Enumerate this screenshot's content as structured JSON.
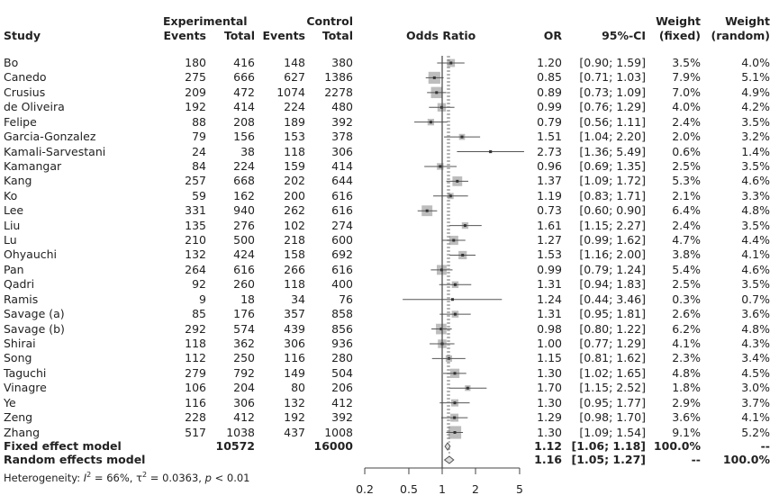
{
  "chart_data": {
    "type": "forest",
    "headers": {
      "study": "Study",
      "experimental": "Experimental",
      "control": "Control",
      "events": "Events",
      "total": "Total",
      "odds_ratio": "Odds Ratio",
      "or": "OR",
      "ci": "95%-CI",
      "weight": "Weight",
      "fixed": "(fixed)",
      "random": "(random)"
    },
    "studies": [
      {
        "name": "Bo",
        "e_events": "180",
        "e_total": "416",
        "c_events": "148",
        "c_total": "380",
        "or": 1.2,
        "lo": 0.9,
        "hi": 1.59,
        "or_text": "1.20",
        "ci_text": "[0.90; 1.59]",
        "w_fixed": 3.5,
        "w_fixed_text": "3.5%",
        "w_random_text": "4.0%"
      },
      {
        "name": "Canedo",
        "e_events": "275",
        "e_total": "666",
        "c_events": "627",
        "c_total": "1386",
        "or": 0.85,
        "lo": 0.71,
        "hi": 1.03,
        "or_text": "0.85",
        "ci_text": "[0.71; 1.03]",
        "w_fixed": 7.9,
        "w_fixed_text": "7.9%",
        "w_random_text": "5.1%"
      },
      {
        "name": "Crusius",
        "e_events": "209",
        "e_total": "472",
        "c_events": "1074",
        "c_total": "2278",
        "or": 0.89,
        "lo": 0.73,
        "hi": 1.09,
        "or_text": "0.89",
        "ci_text": "[0.73; 1.09]",
        "w_fixed": 7.0,
        "w_fixed_text": "7.0%",
        "w_random_text": "4.9%"
      },
      {
        "name": "de Oliveira",
        "e_events": "192",
        "e_total": "414",
        "c_events": "224",
        "c_total": "480",
        "or": 0.99,
        "lo": 0.76,
        "hi": 1.29,
        "or_text": "0.99",
        "ci_text": "[0.76; 1.29]",
        "w_fixed": 4.0,
        "w_fixed_text": "4.0%",
        "w_random_text": "4.2%"
      },
      {
        "name": "Felipe",
        "e_events": "88",
        "e_total": "208",
        "c_events": "189",
        "c_total": "392",
        "or": 0.79,
        "lo": 0.56,
        "hi": 1.11,
        "or_text": "0.79",
        "ci_text": "[0.56; 1.11]",
        "w_fixed": 2.4,
        "w_fixed_text": "2.4%",
        "w_random_text": "3.5%"
      },
      {
        "name": "Garcia-Gonzalez",
        "e_events": "79",
        "e_total": "156",
        "c_events": "153",
        "c_total": "378",
        "or": 1.51,
        "lo": 1.04,
        "hi": 2.2,
        "or_text": "1.51",
        "ci_text": "[1.04; 2.20]",
        "w_fixed": 2.0,
        "w_fixed_text": "2.0%",
        "w_random_text": "3.2%"
      },
      {
        "name": "Kamali-Sarvestani",
        "e_events": "24",
        "e_total": "38",
        "c_events": "118",
        "c_total": "306",
        "or": 2.73,
        "lo": 1.36,
        "hi": 5.49,
        "or_text": "2.73",
        "ci_text": "[1.36; 5.49]",
        "w_fixed": 0.6,
        "w_fixed_text": "0.6%",
        "w_random_text": "1.4%"
      },
      {
        "name": "Kamangar",
        "e_events": "84",
        "e_total": "224",
        "c_events": "159",
        "c_total": "414",
        "or": 0.96,
        "lo": 0.69,
        "hi": 1.35,
        "or_text": "0.96",
        "ci_text": "[0.69; 1.35]",
        "w_fixed": 2.5,
        "w_fixed_text": "2.5%",
        "w_random_text": "3.5%"
      },
      {
        "name": "Kang",
        "e_events": "257",
        "e_total": "668",
        "c_events": "202",
        "c_total": "644",
        "or": 1.37,
        "lo": 1.09,
        "hi": 1.72,
        "or_text": "1.37",
        "ci_text": "[1.09; 1.72]",
        "w_fixed": 5.3,
        "w_fixed_text": "5.3%",
        "w_random_text": "4.6%"
      },
      {
        "name": "Ko",
        "e_events": "59",
        "e_total": "162",
        "c_events": "200",
        "c_total": "616",
        "or": 1.19,
        "lo": 0.83,
        "hi": 1.71,
        "or_text": "1.19",
        "ci_text": "[0.83; 1.71]",
        "w_fixed": 2.1,
        "w_fixed_text": "2.1%",
        "w_random_text": "3.3%"
      },
      {
        "name": "Lee",
        "e_events": "331",
        "e_total": "940",
        "c_events": "262",
        "c_total": "616",
        "or": 0.73,
        "lo": 0.6,
        "hi": 0.9,
        "or_text": "0.73",
        "ci_text": "[0.60; 0.90]",
        "w_fixed": 6.4,
        "w_fixed_text": "6.4%",
        "w_random_text": "4.8%"
      },
      {
        "name": "Liu",
        "e_events": "135",
        "e_total": "276",
        "c_events": "102",
        "c_total": "274",
        "or": 1.61,
        "lo": 1.15,
        "hi": 2.27,
        "or_text": "1.61",
        "ci_text": "[1.15; 2.27]",
        "w_fixed": 2.4,
        "w_fixed_text": "2.4%",
        "w_random_text": "3.5%"
      },
      {
        "name": "Lu",
        "e_events": "210",
        "e_total": "500",
        "c_events": "218",
        "c_total": "600",
        "or": 1.27,
        "lo": 0.99,
        "hi": 1.62,
        "or_text": "1.27",
        "ci_text": "[0.99; 1.62]",
        "w_fixed": 4.7,
        "w_fixed_text": "4.7%",
        "w_random_text": "4.4%"
      },
      {
        "name": "Ohyauchi",
        "e_events": "132",
        "e_total": "424",
        "c_events": "158",
        "c_total": "692",
        "or": 1.53,
        "lo": 1.16,
        "hi": 2.0,
        "or_text": "1.53",
        "ci_text": "[1.16; 2.00]",
        "w_fixed": 3.8,
        "w_fixed_text": "3.8%",
        "w_random_text": "4.1%"
      },
      {
        "name": "Pan",
        "e_events": "264",
        "e_total": "616",
        "c_events": "266",
        "c_total": "616",
        "or": 0.99,
        "lo": 0.79,
        "hi": 1.24,
        "or_text": "0.99",
        "ci_text": "[0.79; 1.24]",
        "w_fixed": 5.4,
        "w_fixed_text": "5.4%",
        "w_random_text": "4.6%"
      },
      {
        "name": "Qadri",
        "e_events": "92",
        "e_total": "260",
        "c_events": "118",
        "c_total": "400",
        "or": 1.31,
        "lo": 0.94,
        "hi": 1.83,
        "or_text": "1.31",
        "ci_text": "[0.94; 1.83]",
        "w_fixed": 2.5,
        "w_fixed_text": "2.5%",
        "w_random_text": "3.5%"
      },
      {
        "name": "Ramis",
        "e_events": "9",
        "e_total": "18",
        "c_events": "34",
        "c_total": "76",
        "or": 1.24,
        "lo": 0.44,
        "hi": 3.46,
        "or_text": "1.24",
        "ci_text": "[0.44; 3.46]",
        "w_fixed": 0.3,
        "w_fixed_text": "0.3%",
        "w_random_text": "0.7%"
      },
      {
        "name": "Savage (a)",
        "e_events": "85",
        "e_total": "176",
        "c_events": "357",
        "c_total": "858",
        "or": 1.31,
        "lo": 0.95,
        "hi": 1.81,
        "or_text": "1.31",
        "ci_text": "[0.95; 1.81]",
        "w_fixed": 2.6,
        "w_fixed_text": "2.6%",
        "w_random_text": "3.6%"
      },
      {
        "name": "Savage (b)",
        "e_events": "292",
        "e_total": "574",
        "c_events": "439",
        "c_total": "856",
        "or": 0.98,
        "lo": 0.8,
        "hi": 1.22,
        "or_text": "0.98",
        "ci_text": "[0.80; 1.22]",
        "w_fixed": 6.2,
        "w_fixed_text": "6.2%",
        "w_random_text": "4.8%"
      },
      {
        "name": "Shirai",
        "e_events": "118",
        "e_total": "362",
        "c_events": "306",
        "c_total": "936",
        "or": 1.0,
        "lo": 0.77,
        "hi": 1.29,
        "or_text": "1.00",
        "ci_text": "[0.77; 1.29]",
        "w_fixed": 4.1,
        "w_fixed_text": "4.1%",
        "w_random_text": "4.3%"
      },
      {
        "name": "Song",
        "e_events": "112",
        "e_total": "250",
        "c_events": "116",
        "c_total": "280",
        "or": 1.15,
        "lo": 0.81,
        "hi": 1.62,
        "or_text": "1.15",
        "ci_text": "[0.81; 1.62]",
        "w_fixed": 2.3,
        "w_fixed_text": "2.3%",
        "w_random_text": "3.4%"
      },
      {
        "name": "Taguchi",
        "e_events": "279",
        "e_total": "792",
        "c_events": "149",
        "c_total": "504",
        "or": 1.3,
        "lo": 1.02,
        "hi": 1.65,
        "or_text": "1.30",
        "ci_text": "[1.02; 1.65]",
        "w_fixed": 4.8,
        "w_fixed_text": "4.8%",
        "w_random_text": "4.5%"
      },
      {
        "name": "Vinagre",
        "e_events": "106",
        "e_total": "204",
        "c_events": "80",
        "c_total": "206",
        "or": 1.7,
        "lo": 1.15,
        "hi": 2.52,
        "or_text": "1.70",
        "ci_text": "[1.15; 2.52]",
        "w_fixed": 1.8,
        "w_fixed_text": "1.8%",
        "w_random_text": "3.0%"
      },
      {
        "name": "Ye",
        "e_events": "116",
        "e_total": "306",
        "c_events": "132",
        "c_total": "412",
        "or": 1.3,
        "lo": 0.95,
        "hi": 1.77,
        "or_text": "1.30",
        "ci_text": "[0.95; 1.77]",
        "w_fixed": 2.9,
        "w_fixed_text": "2.9%",
        "w_random_text": "3.7%"
      },
      {
        "name": "Zeng",
        "e_events": "228",
        "e_total": "412",
        "c_events": "192",
        "c_total": "392",
        "or": 1.29,
        "lo": 0.98,
        "hi": 1.7,
        "or_text": "1.29",
        "ci_text": "[0.98; 1.70]",
        "w_fixed": 3.6,
        "w_fixed_text": "3.6%",
        "w_random_text": "4.1%"
      },
      {
        "name": "Zhang",
        "e_events": "517",
        "e_total": "1038",
        "c_events": "437",
        "c_total": "1008",
        "or": 1.3,
        "lo": 1.09,
        "hi": 1.54,
        "or_text": "1.30",
        "ci_text": "[1.09; 1.54]",
        "w_fixed": 9.1,
        "w_fixed_text": "9.1%",
        "w_random_text": "5.2%"
      }
    ],
    "fixed": {
      "name": "Fixed effect model",
      "e_total": "10572",
      "c_total": "16000",
      "or": 1.12,
      "lo": 1.06,
      "hi": 1.18,
      "or_text": "1.12",
      "ci_text": "[1.06; 1.18]",
      "w_fixed_text": "100.0%",
      "w_random_text": "--"
    },
    "random": {
      "name": "Random effects model",
      "or": 1.16,
      "lo": 1.05,
      "hi": 1.27,
      "or_text": "1.16",
      "ci_text": "[1.05; 1.27]",
      "w_fixed_text": "--",
      "w_random_text": "100.0%"
    },
    "heterogeneity": {
      "prefix": "Heterogeneity: ",
      "i2_label": "I",
      "i2_value": " = 66%, ",
      "tau_label": "τ",
      "tau_value": " = 0.0363, ",
      "p_label": "p",
      "p_value": " < 0.01"
    },
    "xaxis": {
      "scale": "log",
      "ticks": [
        0.2,
        0.5,
        1,
        2,
        5
      ],
      "tick_labels": [
        "0.2",
        "0.5",
        "1",
        "2",
        "5"
      ],
      "xlim": [
        0.2,
        5
      ]
    },
    "colors": {
      "box": "#bdbdbd",
      "line": "#555555",
      "text": "#222222"
    }
  }
}
